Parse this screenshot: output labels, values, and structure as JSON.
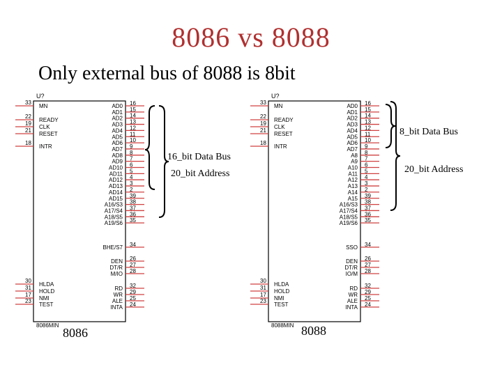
{
  "slide": {
    "title": "8086 vs  8088",
    "subtitle": "Only external bus of 8088 is 8bit"
  },
  "chip_8086": {
    "ref": "U?",
    "part": "8086MIN",
    "caption": "8086",
    "left_pins": [
      {
        "num": "33",
        "name": "MN"
      },
      {
        "num": "22",
        "name": "READY"
      },
      {
        "num": "19",
        "name": "CLK"
      },
      {
        "num": "21",
        "name": "RESET"
      },
      {
        "num": "18",
        "name": "INTR"
      },
      {
        "num": "30",
        "name": "HLDA"
      },
      {
        "num": "31",
        "name": "HOLD"
      },
      {
        "num": "17",
        "name": "NMI"
      },
      {
        "num": "23",
        "name": "TEST"
      }
    ],
    "right_pins": [
      {
        "num": "16",
        "name": "AD0"
      },
      {
        "num": "15",
        "name": "AD1"
      },
      {
        "num": "14",
        "name": "AD2"
      },
      {
        "num": "13",
        "name": "AD3"
      },
      {
        "num": "12",
        "name": "AD4"
      },
      {
        "num": "11",
        "name": "AD5"
      },
      {
        "num": "10",
        "name": "AD6"
      },
      {
        "num": "9",
        "name": "AD7"
      },
      {
        "num": "8",
        "name": "AD8"
      },
      {
        "num": "7",
        "name": "AD9"
      },
      {
        "num": "6",
        "name": "AD10"
      },
      {
        "num": "5",
        "name": "AD11"
      },
      {
        "num": "4",
        "name": "AD12"
      },
      {
        "num": "3",
        "name": "AD13"
      },
      {
        "num": "2",
        "name": "AD14"
      },
      {
        "num": "39",
        "name": "AD15"
      },
      {
        "num": "38",
        "name": "A16/S3"
      },
      {
        "num": "37",
        "name": "A17/S4"
      },
      {
        "num": "36",
        "name": "A18/S5"
      },
      {
        "num": "35",
        "name": "A19/S6"
      },
      {
        "num": "34",
        "name": "BHE/S7"
      },
      {
        "num": "26",
        "name": "DEN"
      },
      {
        "num": "27",
        "name": "DT/R"
      },
      {
        "num": "28",
        "name": "M/IO"
      },
      {
        "num": "32",
        "name": "RD"
      },
      {
        "num": "29",
        "name": "WR"
      },
      {
        "num": "25",
        "name": "ALE"
      },
      {
        "num": "24",
        "name": "INTA"
      }
    ],
    "labels": {
      "data_bus": "16_bit Data Bus",
      "address": "20_bit Address"
    }
  },
  "chip_8088": {
    "ref": "U?",
    "part": "8088MIN",
    "caption": "8088",
    "left_pins": [
      {
        "num": "33",
        "name": "MN"
      },
      {
        "num": "22",
        "name": "READY"
      },
      {
        "num": "19",
        "name": "CLK"
      },
      {
        "num": "21",
        "name": "RESET"
      },
      {
        "num": "18",
        "name": "INTR"
      },
      {
        "num": "30",
        "name": "HLDA"
      },
      {
        "num": "31",
        "name": "HOLD"
      },
      {
        "num": "17",
        "name": "NMI"
      },
      {
        "num": "23",
        "name": "TEST"
      }
    ],
    "right_pins": [
      {
        "num": "16",
        "name": "AD0"
      },
      {
        "num": "15",
        "name": "AD1"
      },
      {
        "num": "14",
        "name": "AD2"
      },
      {
        "num": "13",
        "name": "AD3"
      },
      {
        "num": "12",
        "name": "AD4"
      },
      {
        "num": "11",
        "name": "AD5"
      },
      {
        "num": "10",
        "name": "AD6"
      },
      {
        "num": "9",
        "name": "AD7"
      },
      {
        "num": "8",
        "name": "A8"
      },
      {
        "num": "7",
        "name": "A9"
      },
      {
        "num": "6",
        "name": "A10"
      },
      {
        "num": "5",
        "name": "A11"
      },
      {
        "num": "4",
        "name": "A12"
      },
      {
        "num": "3",
        "name": "A13"
      },
      {
        "num": "2",
        "name": "A14"
      },
      {
        "num": "39",
        "name": "A15"
      },
      {
        "num": "38",
        "name": "A16/S3"
      },
      {
        "num": "37",
        "name": "A17/S4"
      },
      {
        "num": "36",
        "name": "A18/S5"
      },
      {
        "num": "35",
        "name": "A19/S6"
      },
      {
        "num": "34",
        "name": "SSO"
      },
      {
        "num": "26",
        "name": "DEN"
      },
      {
        "num": "27",
        "name": "DT/R"
      },
      {
        "num": "28",
        "name": "IO/M"
      },
      {
        "num": "32",
        "name": "RD"
      },
      {
        "num": "29",
        "name": "WR"
      },
      {
        "num": "25",
        "name": "ALE"
      },
      {
        "num": "24",
        "name": "INTA"
      }
    ],
    "labels": {
      "data_bus": "8_bit Data Bus",
      "address": "20_bit Address"
    }
  },
  "colors": {
    "pin": "#d04040",
    "box": "#000000",
    "title": "#b03030"
  }
}
